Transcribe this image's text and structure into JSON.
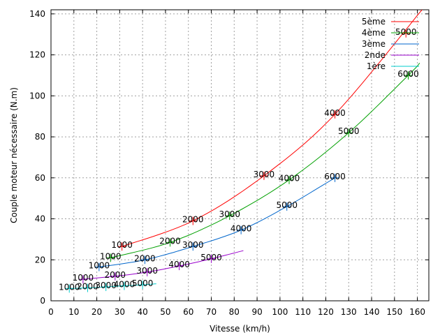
{
  "chart_data": {
    "type": "line",
    "title": "",
    "xlabel": "Vitesse (km/h)",
    "ylabel": "Couple moteur nécessaire (N.m)",
    "xlim": [
      0,
      165
    ],
    "ylim": [
      0,
      142
    ],
    "xticks": [
      0,
      10,
      20,
      30,
      40,
      50,
      60,
      70,
      80,
      90,
      100,
      110,
      120,
      130,
      140,
      150,
      160
    ],
    "yticks": [
      0,
      20,
      40,
      60,
      80,
      100,
      120,
      140
    ],
    "grid": true,
    "legend": "top-right",
    "colors": {
      "5ème": "#ff0000",
      "4ème": "#00a000",
      "3ème": "#0066cc",
      "2nde": "#9900cc",
      "1ère": "#00cccc"
    },
    "series": [
      {
        "name": "5ème",
        "curve": [
          [
            31,
            26.5
          ],
          [
            62,
            39
          ],
          [
            93,
            61
          ],
          [
            124,
            91
          ],
          [
            162,
            142
          ]
        ],
        "points": [
          {
            "rpm": "1000",
            "x": 31,
            "y": 26.5
          },
          {
            "rpm": "2000",
            "x": 62,
            "y": 39
          },
          {
            "rpm": "3000",
            "x": 93,
            "y": 61
          },
          {
            "rpm": "4000",
            "x": 124,
            "y": 91
          },
          {
            "rpm": "5000",
            "x": 155,
            "y": 130.5
          }
        ]
      },
      {
        "name": "4ème",
        "curve": [
          [
            26,
            21
          ],
          [
            52,
            28.5
          ],
          [
            78,
            41.5
          ],
          [
            104,
            59
          ],
          [
            130,
            82
          ],
          [
            156,
            110
          ],
          [
            161,
            116
          ]
        ],
        "points": [
          {
            "rpm": "1000",
            "x": 26,
            "y": 21
          },
          {
            "rpm": "2000",
            "x": 52,
            "y": 28.5
          },
          {
            "rpm": "3000",
            "x": 78,
            "y": 41.5
          },
          {
            "rpm": "4000",
            "x": 104,
            "y": 59
          },
          {
            "rpm": "5000",
            "x": 130,
            "y": 82
          },
          {
            "rpm": "6000",
            "x": 156,
            "y": 110
          }
        ]
      },
      {
        "name": "3ème",
        "curve": [
          [
            21,
            16.5
          ],
          [
            41,
            20
          ],
          [
            62,
            26.5
          ],
          [
            83,
            34.5
          ],
          [
            103,
            46
          ],
          [
            124,
            60
          ]
        ],
        "points": [
          {
            "rpm": "1000",
            "x": 21,
            "y": 16.5
          },
          {
            "rpm": "2000",
            "x": 41,
            "y": 20
          },
          {
            "rpm": "3000",
            "x": 62,
            "y": 26.5
          },
          {
            "rpm": "4000",
            "x": 83,
            "y": 34.5
          },
          {
            "rpm": "5000",
            "x": 103,
            "y": 46
          },
          {
            "rpm": "6000",
            "x": 124,
            "y": 60
          }
        ]
      },
      {
        "name": "2nde",
        "curve": [
          [
            14,
            10.5
          ],
          [
            28,
            12
          ],
          [
            42,
            14
          ],
          [
            56,
            17
          ],
          [
            70,
            20.5
          ],
          [
            84,
            24.5
          ]
        ],
        "points": [
          {
            "rpm": "1000",
            "x": 14,
            "y": 10.5
          },
          {
            "rpm": "2000",
            "x": 28,
            "y": 12
          },
          {
            "rpm": "3000",
            "x": 42,
            "y": 14
          },
          {
            "rpm": "4000",
            "x": 56,
            "y": 17
          },
          {
            "rpm": "5000",
            "x": 70,
            "y": 20.5
          }
        ]
      },
      {
        "name": "1ère",
        "curve": [
          [
            8,
            6
          ],
          [
            16,
            6.3
          ],
          [
            24,
            6.8
          ],
          [
            32,
            7.3
          ],
          [
            40,
            7.8
          ],
          [
            46,
            8.3
          ]
        ],
        "points": [
          {
            "rpm": "1000",
            "x": 8,
            "y": 6
          },
          {
            "rpm": "2000",
            "x": 16,
            "y": 6.3
          },
          {
            "rpm": "3000",
            "x": 24,
            "y": 6.8
          },
          {
            "rpm": "4000",
            "x": 32,
            "y": 7.3
          },
          {
            "rpm": "5000",
            "x": 40,
            "y": 7.8
          }
        ]
      }
    ]
  }
}
